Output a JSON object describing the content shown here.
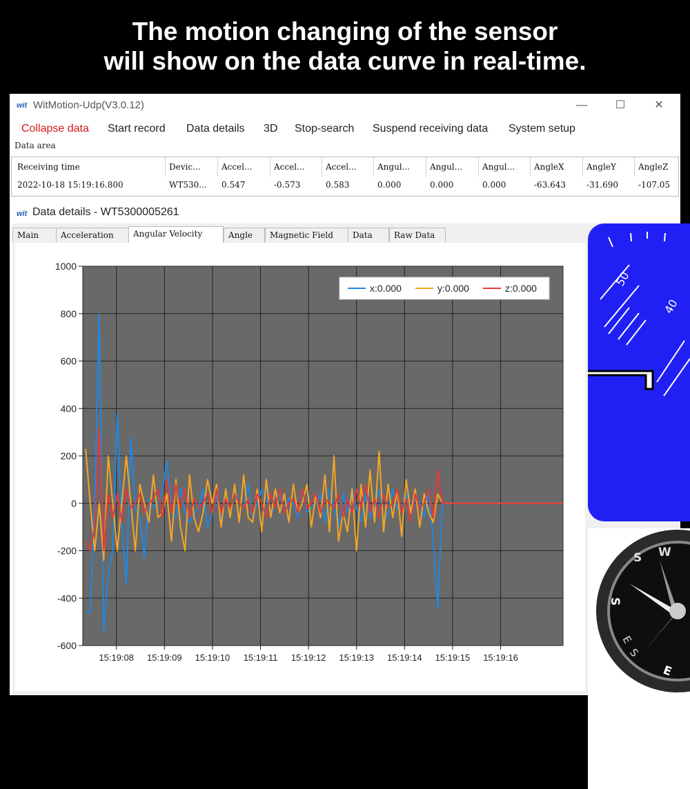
{
  "headline": {
    "line1": "The motion changing of the sensor",
    "line2": "will show on the data curve in real-time."
  },
  "window": {
    "logo": "wit",
    "title": "WitMotion-Udp(V3.0.12)",
    "controls": {
      "minimize": "—",
      "maximize": "☐",
      "close": "✕"
    }
  },
  "menu": [
    "Collapse data",
    "Start record",
    "Data details",
    "3D",
    "Stop-search",
    "Suspend receiving data",
    "System setup"
  ],
  "data_area": {
    "label": "Data area",
    "headers": [
      "Receiving time",
      "Devic...",
      "Accel...",
      "Accel...",
      "Accel...",
      "Angul...",
      "Angul...",
      "Angul...",
      "AngleX",
      "AngleY",
      "AngleZ"
    ],
    "row": [
      "2022-10-18 15:19:16.800",
      "WT530...",
      "0.547",
      "-0.573",
      "0.583",
      "0.000",
      "0.000",
      "0.000",
      "-63.643",
      "-31.690",
      "-107.05"
    ]
  },
  "details": {
    "logo": "wit",
    "title": "Data details - WT5300005261",
    "tabs": [
      "Main",
      "Acceleration",
      "Angular Velocity",
      "Angle",
      "Magnetic Field",
      "Data",
      "Raw Data"
    ],
    "selected_tab": "Angular Velocity"
  },
  "colors": {
    "x": "#1e88e5",
    "y": "#f5a623",
    "z": "#e53935",
    "plot_bg": "#696969",
    "instrument": "#2020f4",
    "active_menu": "#d01a1a"
  },
  "chart_data": {
    "type": "line",
    "ylim": [
      -600,
      1000
    ],
    "yticks": [
      1000,
      800,
      600,
      400,
      200,
      0,
      -200,
      -400,
      -600
    ],
    "xticks": [
      "15:19:08",
      "15:19:09",
      "15:19:10",
      "15:19:11",
      "15:19:12",
      "15:19:13",
      "15:19:14",
      "15:19:15",
      "15:19:16"
    ],
    "xlim_seconds": [
      "15:19:07.3",
      "15:19:17.3"
    ],
    "legend": [
      "x:0.000",
      "y:0.000",
      "z:0.000"
    ],
    "legend_position": "top-right",
    "grid": true,
    "sample_step_s": 0.1,
    "active_samples": 80,
    "series": [
      {
        "name": "x:0.000",
        "values": [
          -460,
          -460,
          0,
          800,
          -540,
          -300,
          -200,
          380,
          -100,
          -340,
          280,
          -20,
          -60,
          -230,
          20,
          -20,
          0,
          60,
          180,
          -40,
          -60,
          60,
          -40,
          -80,
          -40,
          -20,
          60,
          -100,
          -40,
          40,
          -80,
          60,
          -60,
          60,
          0,
          -20,
          80,
          -60,
          0,
          60,
          20,
          -40,
          -20,
          40,
          -40,
          20,
          0,
          -60,
          60,
          -40,
          -20,
          0,
          40,
          -80,
          60,
          -20,
          -100,
          40,
          -40,
          60,
          -20,
          -80,
          40,
          -60,
          0,
          60,
          -80,
          -40,
          60,
          -20,
          -40,
          40,
          -80,
          20,
          0,
          -60,
          60,
          -160,
          -440,
          0
        ]
      },
      {
        "name": "y:0.000",
        "values": [
          230,
          0,
          -200,
          0,
          -240,
          200,
          0,
          -200,
          0,
          200,
          0,
          -200,
          80,
          0,
          -80,
          120,
          -60,
          -40,
          40,
          -160,
          100,
          -100,
          -200,
          120,
          -60,
          -120,
          -40,
          100,
          0,
          80,
          -100,
          60,
          -60,
          80,
          -80,
          120,
          -60,
          -80,
          60,
          -120,
          100,
          -60,
          60,
          -40,
          40,
          -80,
          80,
          -40,
          0,
          80,
          -100,
          40,
          -60,
          120,
          -120,
          200,
          -160,
          -40,
          -120,
          60,
          -200,
          80,
          -100,
          140,
          -80,
          220,
          -120,
          80,
          -60,
          60,
          -140,
          100,
          -40,
          60,
          -100,
          40,
          -40,
          -80,
          40,
          0
        ]
      },
      {
        "name": "z:0.000",
        "values": [
          -160,
          -200,
          -100,
          320,
          -200,
          40,
          -60,
          40,
          -80,
          60,
          -20,
          0,
          40,
          -40,
          0,
          20,
          60,
          -60,
          100,
          -40,
          80,
          -20,
          60,
          -60,
          20,
          -20,
          0,
          40,
          -40,
          60,
          -40,
          20,
          -20,
          40,
          0,
          -20,
          20,
          -40,
          40,
          0,
          -60,
          40,
          -20,
          60,
          -40,
          0,
          20,
          -40,
          60,
          -20,
          0,
          40,
          -40,
          20,
          0,
          -20,
          40,
          -60,
          20,
          -40,
          60,
          -20,
          80,
          -40,
          20,
          -60,
          40,
          -20,
          0,
          60,
          -40,
          20,
          -80,
          40,
          -20,
          0,
          60,
          -60,
          140,
          0
        ]
      }
    ]
  },
  "instrument": {
    "labels": [
      "50",
      "40"
    ]
  },
  "compass": {
    "labels": [
      "S",
      "W",
      "S",
      "E",
      "S",
      "E"
    ]
  }
}
